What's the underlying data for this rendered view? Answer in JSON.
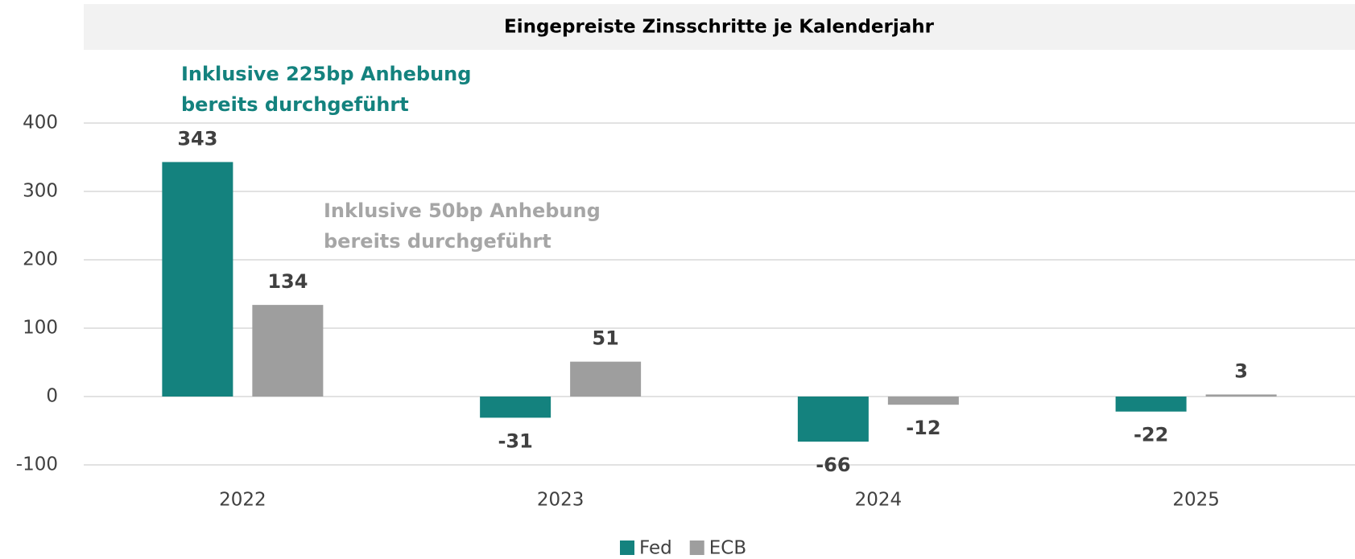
{
  "chart_data": {
    "type": "bar",
    "title": "Eingepreiste Zinsschritte je Kalenderjahr",
    "categories": [
      "2022",
      "2023",
      "2024",
      "2025"
    ],
    "series": [
      {
        "name": "Fed",
        "color": "#14827e",
        "values": [
          343,
          -31,
          -66,
          -22
        ]
      },
      {
        "name": "ECB",
        "color": "#9e9e9e",
        "values": [
          134,
          51,
          -12,
          3
        ]
      }
    ],
    "ylim": [
      -100,
      400
    ],
    "yticks": [
      -100,
      0,
      100,
      200,
      300,
      400
    ],
    "grid": true,
    "legend": "bottom",
    "annotations": [
      {
        "text": [
          "Inklusive 225bp Anhebung",
          "bereits durchgeführt"
        ],
        "color": "#14827e"
      },
      {
        "text": [
          "Inklusive 50bp Anhebung",
          "bereits durchgeführt"
        ],
        "color": "#a6a6a6"
      }
    ]
  }
}
